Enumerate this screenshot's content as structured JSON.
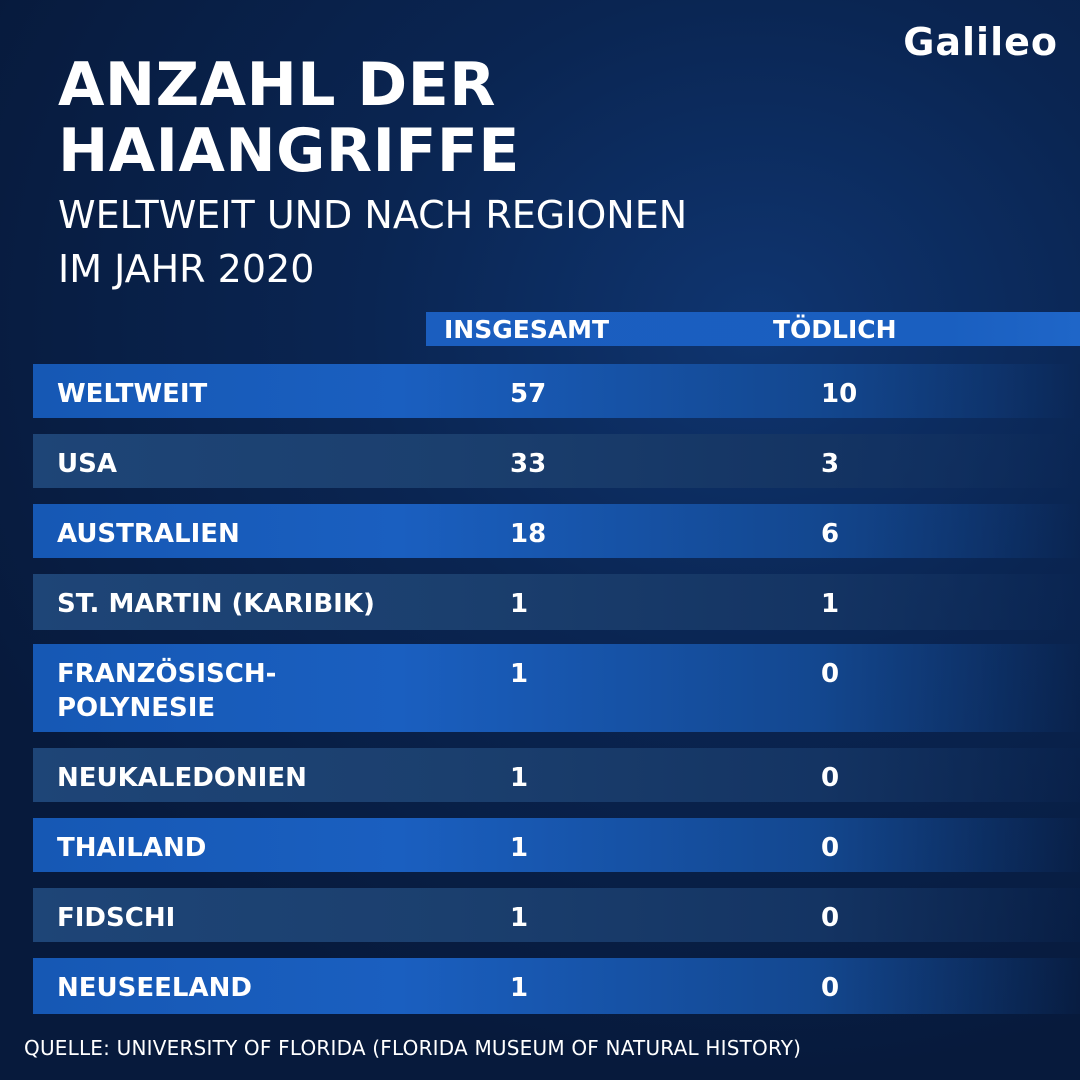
{
  "brand": {
    "logo_text": "Galileo"
  },
  "header": {
    "title_line1": "ANZAHL DER",
    "title_line2": "HAIANGRIFFE",
    "subtitle_line1": "WELTWEIT UND NACH REGIONEN",
    "subtitle_line2": "IM JAHR 2020"
  },
  "colors": {
    "background": "#0a2552",
    "bar_bright": "#1a5fc0",
    "bar_dark": "#1b3f6e",
    "text": "#ffffff"
  },
  "chart_data": {
    "type": "table",
    "columns": [
      "",
      "INSGESAMT",
      "TÖDLICH"
    ],
    "rows": [
      {
        "region": "WELTWEIT",
        "total": "57",
        "fatal": "10"
      },
      {
        "region": "USA",
        "total": "33",
        "fatal": "3"
      },
      {
        "region": "AUSTRALIEN",
        "total": "18",
        "fatal": "6"
      },
      {
        "region": "ST. MARTIN (KARIBIK)",
        "total": "1",
        "fatal": "1"
      },
      {
        "region": "FRANZÖSISCH-POLYNESIE",
        "total": "1",
        "fatal": "0"
      },
      {
        "region": "NEUKALEDONIEN",
        "total": "1",
        "fatal": "0"
      },
      {
        "region": "THAILAND",
        "total": "1",
        "fatal": "0"
      },
      {
        "region": "FIDSCHI",
        "total": "1",
        "fatal": "0"
      },
      {
        "region": "NEUSEELAND",
        "total": "1",
        "fatal": "0"
      }
    ]
  },
  "footer": {
    "source": "QUELLE:  UNIVERSITY OF FLORIDA (FLORIDA MUSEUM OF NATURAL HISTORY)"
  }
}
